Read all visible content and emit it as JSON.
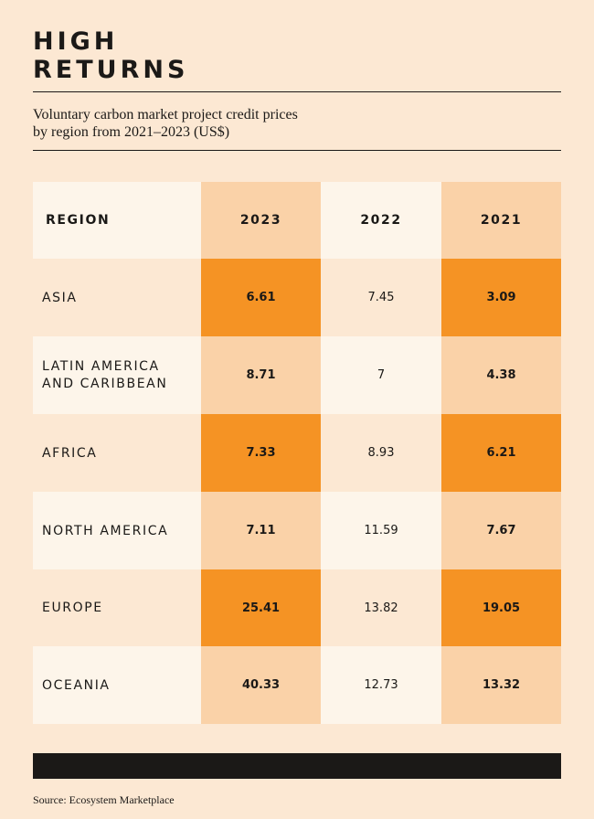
{
  "title_lines": [
    "HIGH",
    "RETURNS"
  ],
  "subtitle_lines": [
    "Voluntary carbon market project credit prices",
    "by region from 2021–2023 (US$)"
  ],
  "source": "Source: Ecosystem Marketplace",
  "colors": {
    "background": "#fce8d3",
    "light": "#fdf5ea",
    "peach": "#fad2a8",
    "orange": "#f59324",
    "ink": "#1b1917"
  },
  "chart_data": {
    "type": "table",
    "title": "HIGH RETURNS",
    "subtitle": "Voluntary carbon market project credit prices by region from 2021–2023 (US$)",
    "columns": [
      "REGION",
      "2023",
      "2022",
      "2021"
    ],
    "rows": [
      {
        "region": "ASIA",
        "v2023": "6.61",
        "v2022": "7.45",
        "v2021": "3.09"
      },
      {
        "region": "LATIN AMERICA\nAND CARIBBEAN",
        "v2023": "8.71",
        "v2022": "7",
        "v2021": "4.38"
      },
      {
        "region": "AFRICA",
        "v2023": "7.33",
        "v2022": "8.93",
        "v2021": "6.21"
      },
      {
        "region": "NORTH AMERICA",
        "v2023": "7.11",
        "v2022": "11.59",
        "v2021": "7.67"
      },
      {
        "region": "EUROPE",
        "v2023": "25.41",
        "v2022": "13.82",
        "v2021": "19.05"
      },
      {
        "region": "OCEANIA",
        "v2023": "40.33",
        "v2022": "12.73",
        "v2021": "13.32"
      }
    ],
    "source": "Ecosystem Marketplace"
  }
}
